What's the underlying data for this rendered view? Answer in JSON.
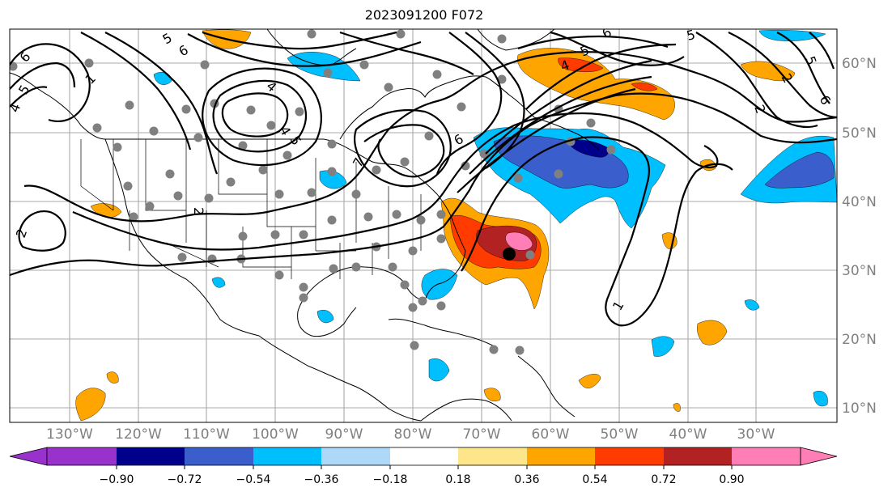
{
  "title": "2023091200 F072",
  "longitude_labels": [
    "130°W",
    "120°W",
    "110°W",
    "100°W",
    "90°W",
    "80°W",
    "70°W",
    "60°W",
    "50°W",
    "40°W",
    "30°W"
  ],
  "latitude_labels": [
    "60°N",
    "50°N",
    "40°N",
    "30°N",
    "20°N",
    "10°N"
  ],
  "colorbar": {
    "tick_labels": [
      "−0.90",
      "−0.72",
      "−0.54",
      "−0.36",
      "−0.18",
      "0.18",
      "0.36",
      "0.54",
      "0.72",
      "0.90"
    ],
    "colors": [
      "#9932cc",
      "#00008b",
      "#3a5fcd",
      "#00bfff",
      "#add8f7",
      "#ffffff",
      "#fde68a",
      "#ffa500",
      "#ff3b00",
      "#b22222",
      "#ff7eb6"
    ]
  },
  "contour_labels": [
    "2",
    "4",
    "5",
    "6",
    "1",
    "5",
    "6",
    "4",
    "2",
    "4",
    "5",
    "6",
    "7",
    "5",
    "6",
    "2",
    "6",
    "5",
    "4",
    "5",
    "2",
    "1"
  ],
  "storm_marker_color": "#000000",
  "station_color": "#808080"
}
